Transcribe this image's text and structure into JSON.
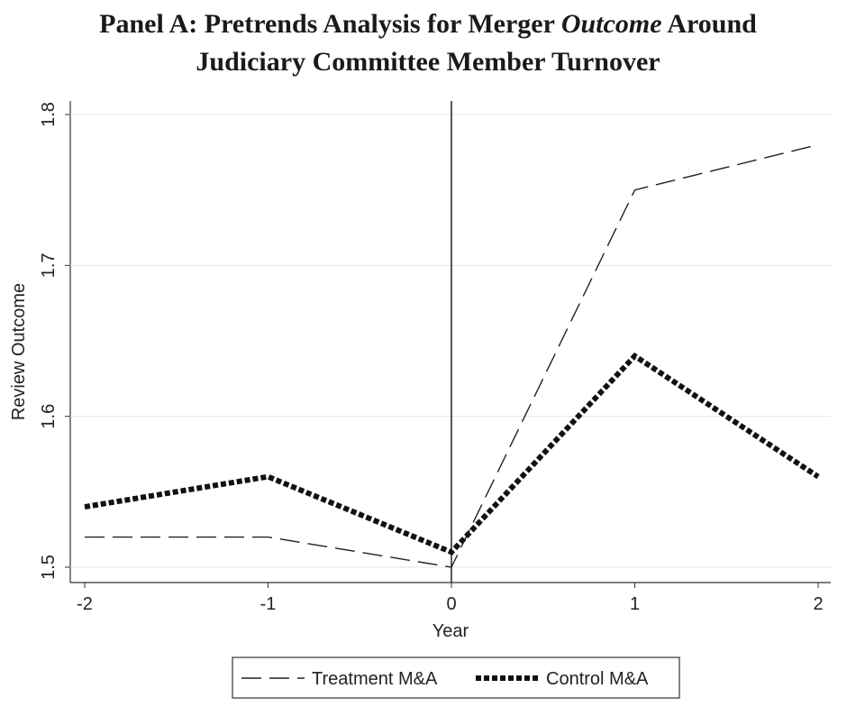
{
  "chart_data": {
    "type": "line",
    "title_parts": {
      "line1_pre": "Panel A: Pretrends Analysis for Merger ",
      "line1_emph": "Outcome",
      "line1_post": " Around",
      "line2": "Judiciary Committee Member Turnover"
    },
    "xlabel": "Year",
    "ylabel": "Review Outcome",
    "x": [
      -2,
      -1,
      0,
      1,
      2
    ],
    "xlim": [
      -2,
      2
    ],
    "ylim": [
      1.5,
      1.8
    ],
    "xticks": [
      "-2",
      "-1",
      "0",
      "1",
      "2"
    ],
    "yticks": [
      "1.5",
      "1.6",
      "1.7",
      "1.8"
    ],
    "grid": "horizontal",
    "reference_line_x": 0,
    "legend_position": "bottom",
    "series": [
      {
        "name": "Treatment M&A",
        "style": "dashed",
        "color": "#222222",
        "values": [
          1.52,
          1.52,
          1.5,
          1.75,
          1.78
        ]
      },
      {
        "name": "Control M&A",
        "style": "dotted-bold",
        "color": "#111111",
        "values": [
          1.54,
          1.56,
          1.51,
          1.64,
          1.56
        ]
      }
    ]
  }
}
